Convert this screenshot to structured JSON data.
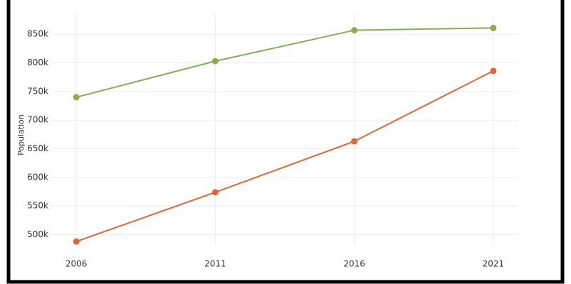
{
  "chart_data": {
    "type": "line",
    "y_label": "Population",
    "x": [
      2006,
      2011,
      2016,
      2021
    ],
    "series": [
      {
        "color": "#8aab4f",
        "values": [
          740000,
          803000,
          857000,
          861000
        ]
      },
      {
        "color": "#e0663a",
        "values": [
          488000,
          574000,
          663000,
          786000
        ]
      }
    ],
    "xlim": [
      2005.1,
      2021.9
    ],
    "xticks": [
      2006,
      2011,
      2016,
      2021
    ],
    "ylim": [
      482000,
      885000
    ],
    "yticks": [
      {
        "value": 500000,
        "label": "500k"
      },
      {
        "value": 550000,
        "label": "550k"
      },
      {
        "value": 600000,
        "label": "600k"
      },
      {
        "value": 650000,
        "label": "650k"
      },
      {
        "value": 700000,
        "label": "700k"
      },
      {
        "value": 750000,
        "label": "750k"
      },
      {
        "value": 800000,
        "label": "800k"
      },
      {
        "value": 850000,
        "label": "850k"
      }
    ],
    "grid": true
  }
}
